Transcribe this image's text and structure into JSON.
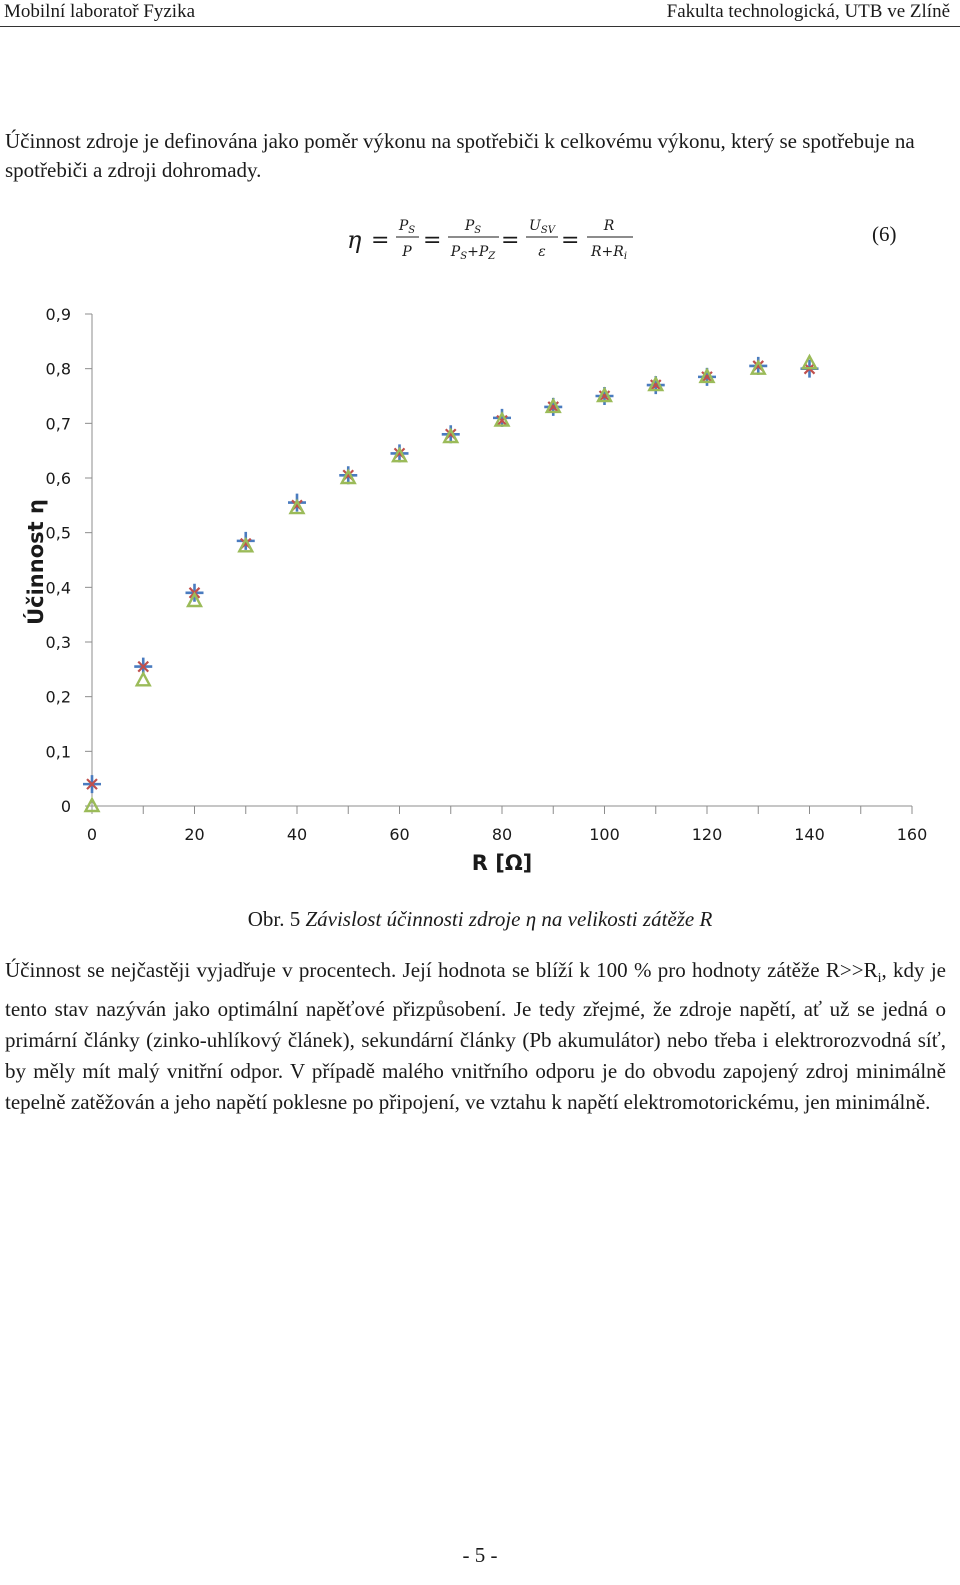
{
  "header": {
    "left": "Mobilní laboratoř Fyzika",
    "right": "Fakulta technologická, UTB ve Zlíně"
  },
  "intro_text": "Účinnost zdroje je definována jako poměr výkonu na spotřebiči k celkovému výkonu, který se spotřebuje na spotřebiči a zdroji dohromady.",
  "equation": {
    "lhs": "η",
    "eq": "=",
    "f1_num": "P",
    "f1_num_sub": "S",
    "f1_den": "P",
    "f2_num": "P",
    "f2_num_sub": "S",
    "f2_den_a": "P",
    "f2_den_a_sub": "S",
    "f2_den_plus": "+",
    "f2_den_b": "P",
    "f2_den_b_sub": "Z",
    "f3_num": "U",
    "f3_num_sub": "SV",
    "f3_den": "ε",
    "f4_num": "R",
    "f4_den_a": "R",
    "f4_den_plus": "+",
    "f4_den_b": "R",
    "f4_den_b_sub": "i",
    "number": "(6)"
  },
  "chart_data": {
    "type": "scatter",
    "xlabel": "R [Ω]",
    "ylabel": "Účinnost η",
    "xlim": [
      0,
      160
    ],
    "ylim": [
      0,
      0.9
    ],
    "x_ticks": [
      "0",
      "20",
      "40",
      "60",
      "80",
      "100",
      "120",
      "140",
      "160"
    ],
    "y_ticks": [
      "0",
      "0,1",
      "0,2",
      "0,3",
      "0,4",
      "0,5",
      "0,6",
      "0,7",
      "0,8",
      "0,9"
    ],
    "grid": false,
    "legend": "none",
    "series": [
      {
        "marker": "plus",
        "color": "#4a7bbf",
        "x": [
          0,
          10,
          20,
          30,
          40,
          50,
          60,
          70,
          80,
          90,
          100,
          110,
          120,
          130,
          140
        ],
        "y": [
          0.04,
          0.255,
          0.39,
          0.485,
          0.555,
          0.605,
          0.645,
          0.68,
          0.71,
          0.73,
          0.75,
          0.77,
          0.785,
          0.805,
          0.8
        ]
      },
      {
        "marker": "x",
        "color": "#c0504d",
        "x": [
          0,
          10,
          20,
          30,
          40,
          50,
          60,
          70,
          80,
          90,
          100,
          110,
          120,
          130,
          140
        ],
        "y": [
          0.04,
          0.255,
          0.39,
          0.48,
          0.55,
          0.605,
          0.645,
          0.68,
          0.705,
          0.73,
          0.75,
          0.77,
          0.785,
          0.805,
          0.8
        ]
      },
      {
        "marker": "triangle",
        "color": "#9bbb59",
        "x": [
          0,
          10,
          20,
          30,
          40,
          50,
          60,
          70,
          80,
          90,
          100,
          110,
          120,
          130,
          140
        ],
        "y": [
          0.0,
          0.23,
          0.375,
          0.475,
          0.545,
          0.6,
          0.64,
          0.675,
          0.705,
          0.73,
          0.75,
          0.77,
          0.785,
          0.8,
          0.81
        ]
      }
    ]
  },
  "caption": {
    "label": "Obr. 5",
    "text": "Závislost účinnosti zdroje η na velikosti zátěže R"
  },
  "body": {
    "p1": "Účinnost se nejčastěji vyjadřuje v procentech. Její hodnota se blíží k 100 % pro hodnoty zátěže R>>R",
    "p1_sub": "i",
    "p2": ", kdy je tento stav nazýván jako optimální napěťové přizpůsobení. Je tedy zřejmé, že zdroje napětí, ať už se jedná o primární články (zinko-uhlíkový článek), sekundární články (Pb akumulátor) nebo třeba i elektrorozvodná síť, by měly mít malý vnitřní odpor. V případě malého vnitřního odporu je do obvodu zapojený zdroj minimálně tepelně zatěžován a jeho napětí poklesne po připojení, ve vztahu k napětí elektromotorickému, jen minimálně."
  },
  "footer": "- 5 -"
}
